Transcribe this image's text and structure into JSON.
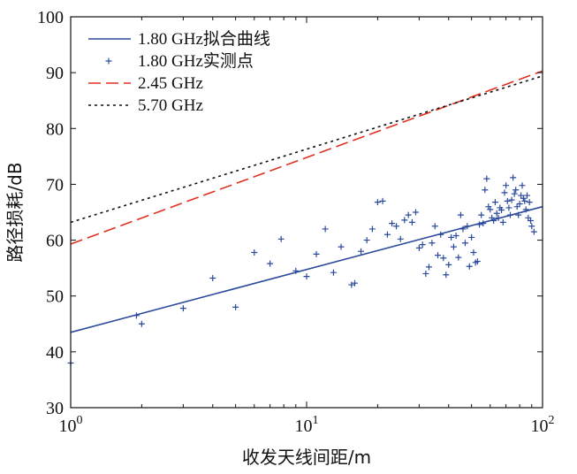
{
  "chart_data": {
    "type": "line",
    "xlabel": "收发天线间距/m",
    "ylabel": "路径损耗/dB",
    "xscale": "log",
    "xlim": [
      1,
      100
    ],
    "ylim": [
      30,
      100
    ],
    "x_ticks": [
      {
        "value": 1,
        "base": "10",
        "exp": "0"
      },
      {
        "value": 10,
        "base": "10",
        "exp": "1"
      },
      {
        "value": 100,
        "base": "10",
        "exp": "2"
      }
    ],
    "y_ticks": [
      "30",
      "40",
      "50",
      "60",
      "70",
      "80",
      "90",
      "100"
    ],
    "grid": false,
    "legend_position": "top-left",
    "colors": {
      "fit": "#2b4a9b",
      "measured": "#2b4a9b",
      "ghz245": "#e03020",
      "ghz570": "#111111"
    },
    "series": [
      {
        "name": "1.80 GHz拟合曲线",
        "style": "solid",
        "x": [
          1,
          100
        ],
        "y": [
          43.5,
          66.0
        ]
      },
      {
        "name": "1.80 GHz实测点",
        "style": "markers-plus",
        "x": [
          1.0,
          1.9,
          2.0,
          3.0,
          4.0,
          5.0,
          6.0,
          7.0,
          7.8,
          9.0,
          10.0,
          11.0,
          12.0,
          13.0,
          14.0,
          15.5,
          16.0,
          17.0,
          18.0,
          19.0,
          20.0,
          21.0,
          22.0,
          23.0,
          24.0,
          25.0,
          26.0,
          27.0,
          28.0,
          29.0,
          30.0,
          31.0,
          32.0,
          33.0,
          34.0,
          35.0,
          36.0,
          37.0,
          38.0,
          39.0,
          40.0,
          41.0,
          42.0,
          43.0,
          44.0,
          45.0,
          46.0,
          47.0,
          48.0,
          49.0,
          50.0,
          51.0,
          52.0,
          53.0,
          54.0,
          55.0,
          56.0,
          57.0,
          58.0,
          59.0,
          60.0,
          61.0,
          62.0,
          63.0,
          64.0,
          65.0,
          66.0,
          67.0,
          68.0,
          69.0,
          70.0,
          71.0,
          72.0,
          73.0,
          74.0,
          75.0,
          76.0,
          77.0,
          78.0,
          79.0,
          80.0,
          81.0,
          82.0,
          83.0,
          84.0,
          85.0,
          86.0,
          87.0,
          88.0,
          89.0,
          90.0,
          92.0
        ],
        "y": [
          38.0,
          46.5,
          45.0,
          47.8,
          53.2,
          48.0,
          57.8,
          55.8,
          60.2,
          54.5,
          53.5,
          57.5,
          62.0,
          54.2,
          58.8,
          52.0,
          52.3,
          58.0,
          60.0,
          62.0,
          66.8,
          67.0,
          61.0,
          63.0,
          62.5,
          60.2,
          63.6,
          64.5,
          63.2,
          65.0,
          58.6,
          59.2,
          54.0,
          55.2,
          59.5,
          62.5,
          57.3,
          61.0,
          56.8,
          53.8,
          55.6,
          60.5,
          58.8,
          60.8,
          56.9,
          64.5,
          62.0,
          59.5,
          62.5,
          55.3,
          60.5,
          57.8,
          56.0,
          56.2,
          62.8,
          64.5,
          63.0,
          69.0,
          71.0,
          66.0,
          65.5,
          64.0,
          63.5,
          66.8,
          64.8,
          64.0,
          65.8,
          65.4,
          63.2,
          68.5,
          69.8,
          67.0,
          65.8,
          64.5,
          67.2,
          71.2,
          68.3,
          69.0,
          66.0,
          64.5,
          66.5,
          68.0,
          69.8,
          67.5,
          67.0,
          65.5,
          68.0,
          64.0,
          66.8,
          63.5,
          62.5,
          61.5
        ]
      },
      {
        "name": "2.45 GHz",
        "style": "dashed",
        "x": [
          1,
          100
        ],
        "y": [
          59.3,
          90.3
        ]
      },
      {
        "name": "5.70 GHz",
        "style": "dotted",
        "x": [
          1,
          100
        ],
        "y": [
          63.2,
          89.4
        ]
      }
    ]
  }
}
